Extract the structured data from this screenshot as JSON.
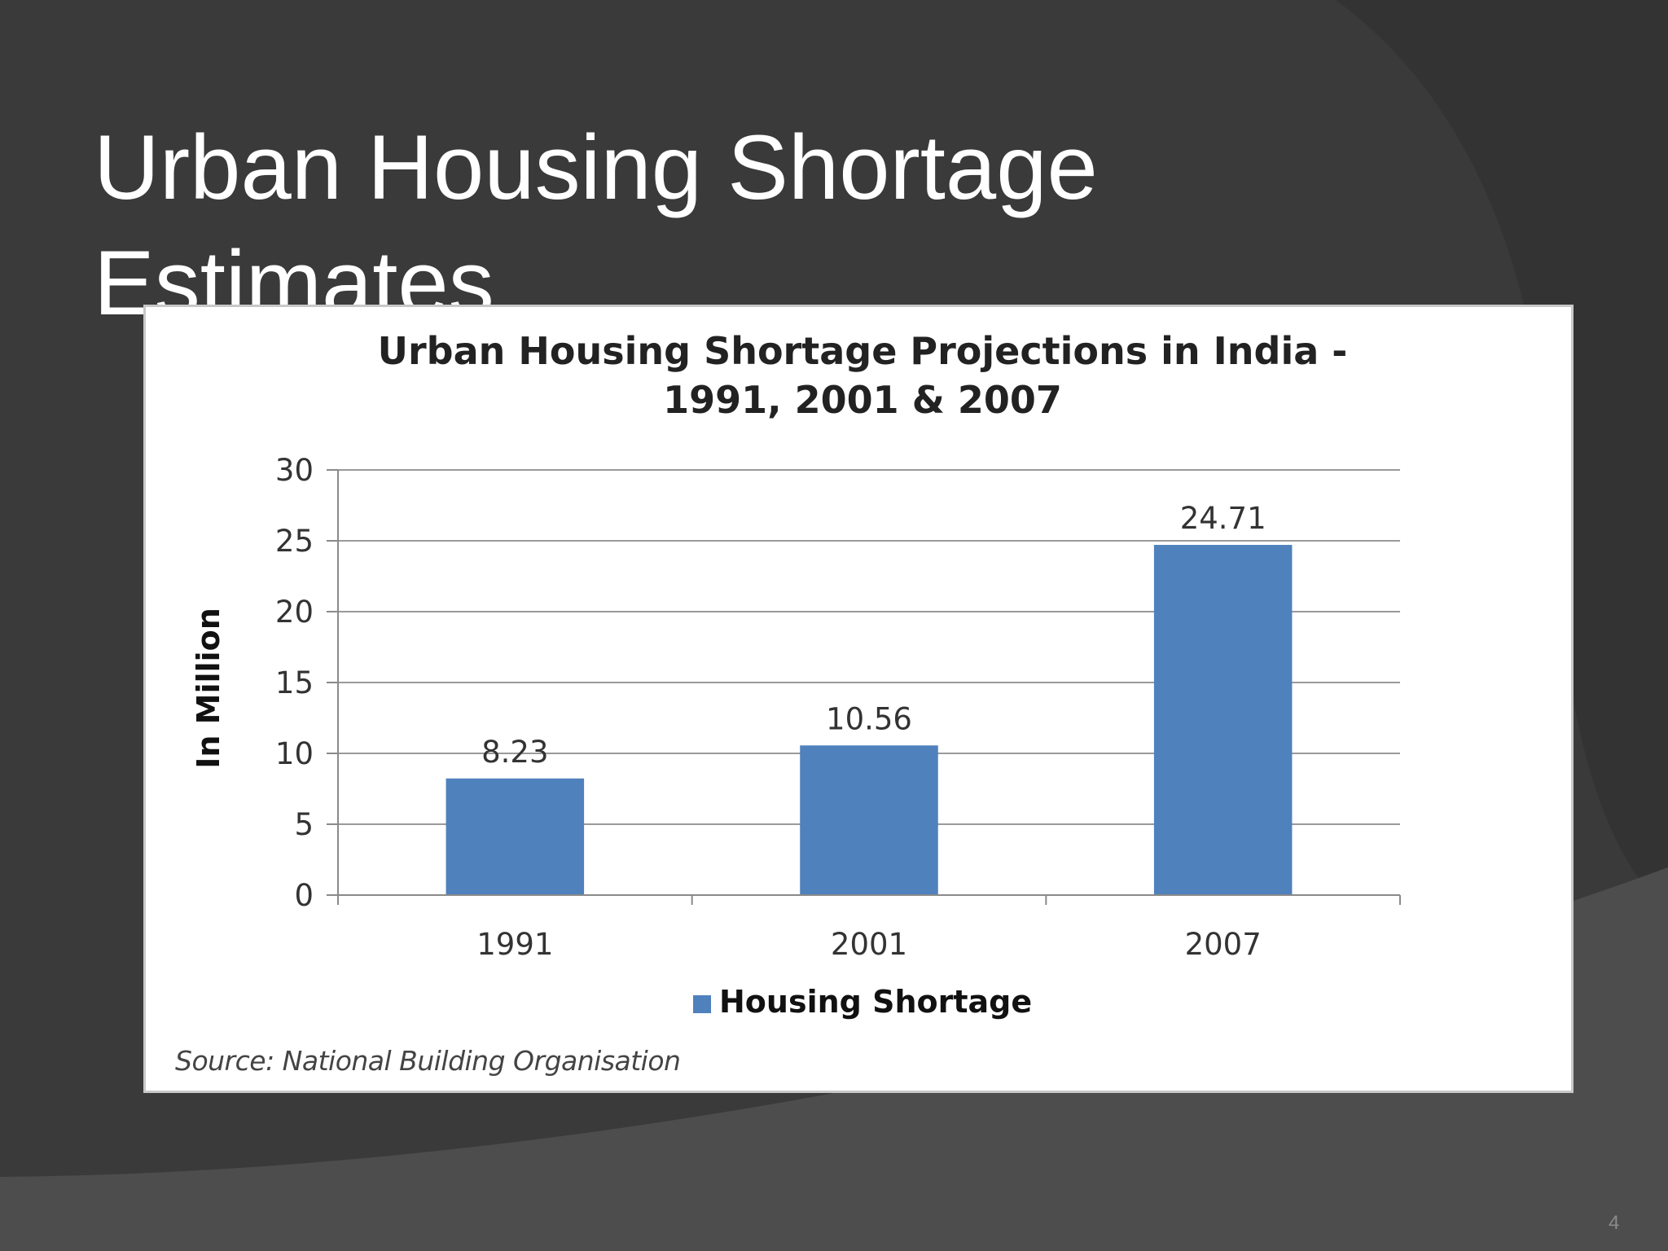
{
  "slide": {
    "title_lines": [
      "Urban Housing Shortage",
      "Estimates"
    ],
    "page_number": "4",
    "background_color": "#3a3a3a"
  },
  "chart_data": {
    "type": "bar",
    "title_lines": [
      "Urban Housing Shortage Projections in India -",
      "1991, 2001 & 2007"
    ],
    "categories": [
      "1991",
      "2001",
      "2007"
    ],
    "series": [
      {
        "name": "Housing Shortage",
        "values": [
          8.23,
          10.56,
          24.71
        ],
        "color": "#4f81bd"
      }
    ],
    "data_labels": [
      "8.23",
      "10.56",
      "24.71"
    ],
    "ylabel": "In Million",
    "ylim": [
      0,
      30
    ],
    "yticks": [
      0,
      5,
      10,
      15,
      20,
      25,
      30
    ],
    "grid": true,
    "legend_position": "bottom",
    "source": "Source: National Building Organisation"
  }
}
